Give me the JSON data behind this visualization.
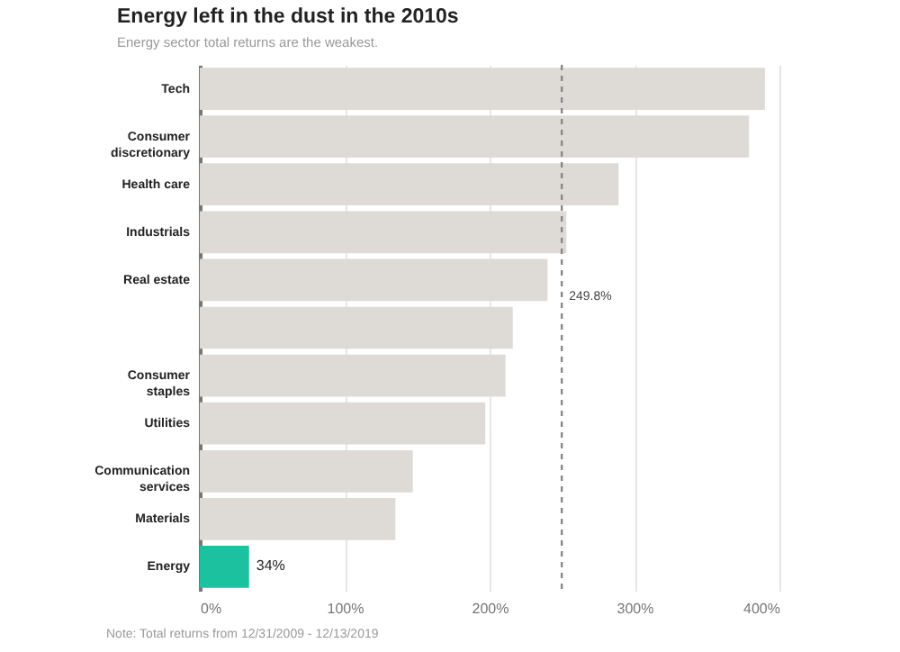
{
  "chart_data": {
    "type": "bar",
    "orientation": "horizontal",
    "title": "Energy left in the dust in the 2010s",
    "subtitle": "Energy sector total returns are the weakest.",
    "categories": [
      "Tech",
      "Consumer discretionary",
      "Health care",
      "Industrials",
      "Real estate",
      null,
      "Consumer staples",
      "Utilities",
      "Communication services",
      "Materials",
      "Energy"
    ],
    "values": [
      390,
      379,
      289,
      253,
      240,
      216,
      211,
      197,
      147,
      135,
      34
    ],
    "colors": [
      "#dedbd6",
      "#dedbd6",
      "#dedbd6",
      "#dedbd6",
      "#dedbd6",
      "#dedbd6",
      "#dedbd6",
      "#dedbd6",
      "#dedbd6",
      "#dedbd6",
      "#1cc29f"
    ],
    "value_labels": [
      null,
      null,
      null,
      null,
      null,
      null,
      null,
      null,
      null,
      null,
      "34%"
    ],
    "xlim": [
      0,
      400
    ],
    "xticks": [
      {
        "value": 0,
        "label": "0%"
      },
      {
        "value": 100,
        "label": "100%"
      },
      {
        "value": 200,
        "label": "200%"
      },
      {
        "value": 300,
        "label": "300%"
      },
      {
        "value": 400,
        "label": "400%"
      }
    ],
    "ref_lines": [
      {
        "axis": "x",
        "value": 249.8,
        "label": "249.8%",
        "line_style": "dashed",
        "color": "#888888"
      }
    ],
    "grid": "x",
    "annotations": [
      "Note: Total returns from 12/31/2009 - 12/13/2019"
    ]
  }
}
